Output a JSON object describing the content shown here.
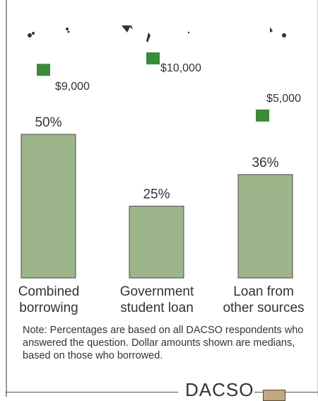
{
  "chart_data": {
    "type": "bar",
    "categories": [
      [
        "Combined",
        "borrowing"
      ],
      [
        "Government",
        "student loan"
      ],
      [
        "Loan from",
        "other sources"
      ]
    ],
    "series": [
      {
        "values": [
          50,
          25,
          36
        ],
        "value_labels": [
          "50%",
          "25%",
          "36%"
        ]
      }
    ],
    "medians": [
      9000,
      10000,
      5000
    ],
    "median_labels": [
      "$9,000",
      "$10,000",
      "$5,000"
    ],
    "ylim": [
      0,
      100
    ],
    "grid": false,
    "legend": "none",
    "colors": {
      "bar": "#9cb58a",
      "bar_border": "#4a4a4a",
      "marker": "#3a8a3a"
    }
  },
  "note": "Note: Percentages are based on all DACSO respondents who answered the question.  Dollar amounts shown are medians, based on those who borrowed.",
  "logo": {
    "text": "DACSO"
  }
}
